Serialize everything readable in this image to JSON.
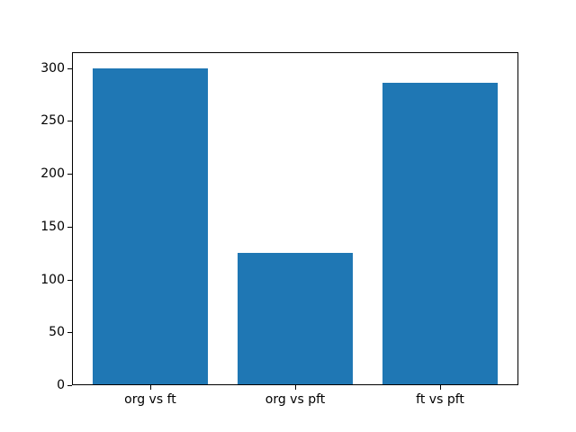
{
  "figure": {
    "background_color": "#ffffff",
    "title": ""
  },
  "chart_data": {
    "type": "bar",
    "title": "",
    "xlabel": "",
    "ylabel": "",
    "categories": [
      "org vs ft",
      "org vs pft",
      "ft vs pft"
    ],
    "values": [
      300,
      125,
      286
    ],
    "ylim": [
      0,
      315
    ],
    "yticks": [
      0,
      50,
      100,
      150,
      200,
      250,
      300
    ],
    "bar_width": 0.8,
    "bar_color": "#1f77b4",
    "axis_color": "#000000",
    "plot_background_color": "#ffffff",
    "grid": false,
    "legend_position": "none"
  }
}
